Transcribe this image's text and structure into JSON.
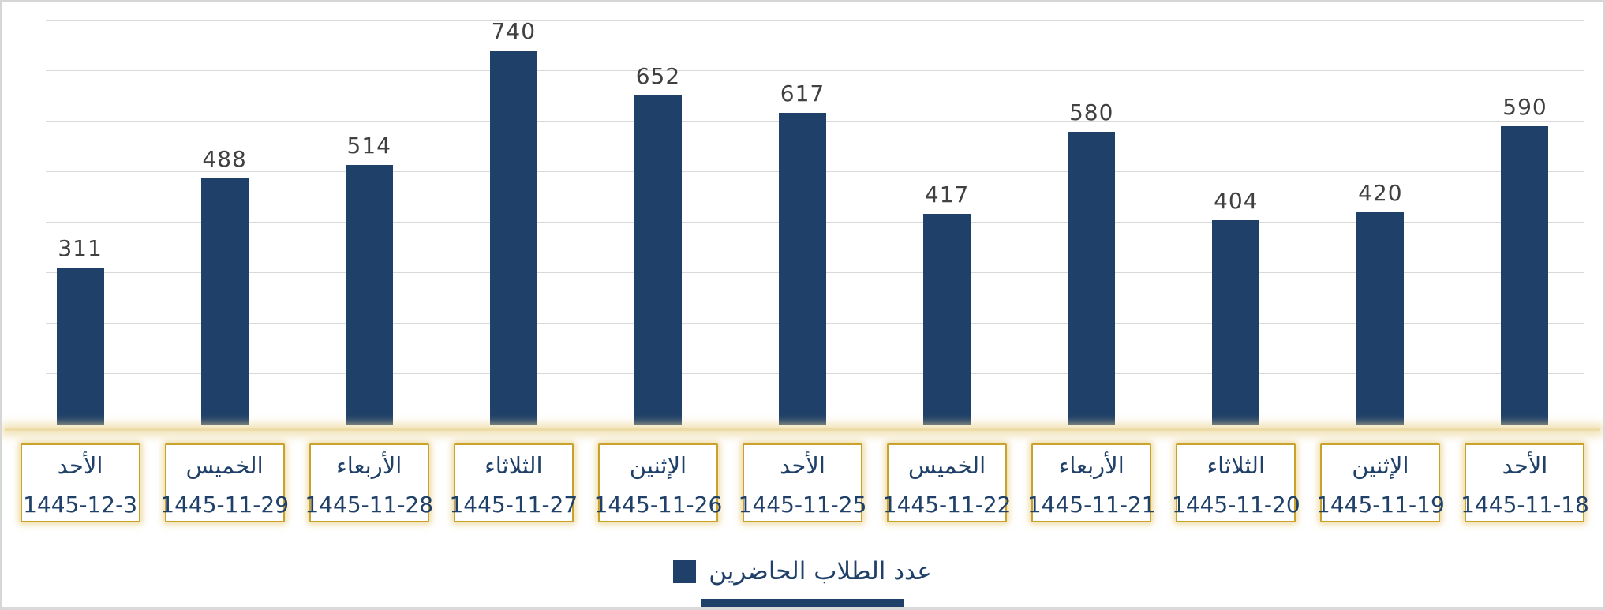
{
  "chart_data": {
    "type": "bar",
    "title": "",
    "legend": "عدد الطلاب الحاضرين",
    "legend_position": "bottom-center",
    "bar_color": "#1F4068",
    "value_label_color": "#404040",
    "gridline_color": "#d9d9d9",
    "axis_box_border_color": "#c9a22c",
    "text_color": "#1F4068",
    "ylim": [
      0,
      800
    ],
    "grid": true,
    "gridline_step": 100,
    "categories": [
      "الأحد",
      "الخميس",
      "الأربعاء",
      "الثلاثاء",
      "الإثنين",
      "الأحد",
      "الخميس",
      "الأربعاء",
      "الثلاثاء",
      "الإثنين",
      "الأحد"
    ],
    "dates": [
      "1445-12-3",
      "1445-11-29",
      "1445-11-28",
      "1445-11-27",
      "1445-11-26",
      "1445-11-25",
      "1445-11-22",
      "1445-11-21",
      "1445-11-20",
      "1445-11-19",
      "1445-11-18"
    ],
    "values": [
      311,
      488,
      514,
      740,
      652,
      617,
      417,
      580,
      404,
      420,
      590
    ]
  }
}
